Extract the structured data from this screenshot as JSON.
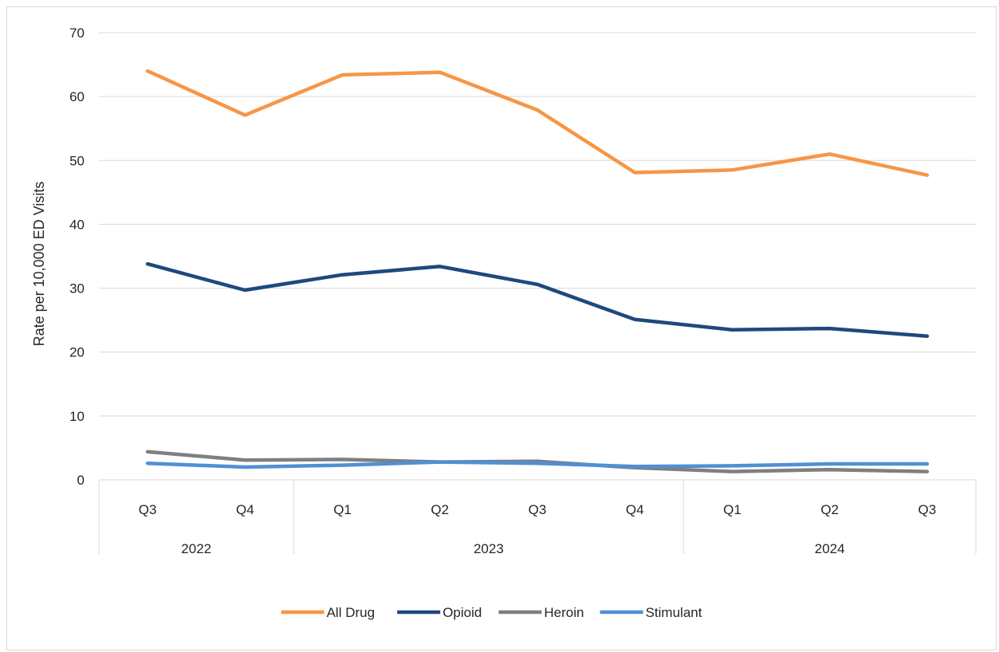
{
  "chart_data": {
    "type": "line",
    "title": "",
    "ylabel": "Rate per 10,000 ED Visits",
    "xlabel": "",
    "ylim": [
      0,
      70
    ],
    "yticks": [
      0,
      10,
      20,
      30,
      40,
      50,
      60,
      70
    ],
    "grid": true,
    "legend_position": "bottom",
    "categories": [
      "Q3",
      "Q4",
      "Q1",
      "Q2",
      "Q3",
      "Q4",
      "Q1",
      "Q2",
      "Q3"
    ],
    "year_groups": [
      {
        "label": "2022",
        "count": 2
      },
      {
        "label": "2023",
        "count": 4
      },
      {
        "label": "2024",
        "count": 3
      }
    ],
    "series": [
      {
        "name": "All Drug",
        "color": "#f79646",
        "values": [
          64.0,
          57.1,
          63.4,
          63.8,
          57.9,
          48.1,
          48.5,
          51.0,
          47.7
        ]
      },
      {
        "name": "Opioid",
        "color": "#1f497d",
        "values": [
          33.8,
          29.7,
          32.1,
          33.4,
          30.6,
          25.1,
          23.5,
          23.7,
          22.5
        ]
      },
      {
        "name": "Heroin",
        "color": "#7f7f7f",
        "values": [
          4.4,
          3.1,
          3.2,
          2.8,
          2.9,
          1.9,
          1.3,
          1.6,
          1.3
        ]
      },
      {
        "name": "Stimulant",
        "color": "#4f8fd6",
        "values": [
          2.6,
          2.0,
          2.3,
          2.8,
          2.6,
          2.1,
          2.2,
          2.5,
          2.5
        ]
      }
    ]
  }
}
